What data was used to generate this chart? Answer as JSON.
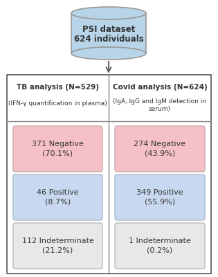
{
  "db_label_line1": "PSI dataset",
  "db_label_line2": "624 individuals",
  "db_color": "#b8d4e8",
  "db_edge_color": "#999999",
  "left_title_bold": "TB analysis (N=529)",
  "left_title_sub": "(IFN-γ quantification in plasma)",
  "right_title_bold": "Covid analysis (N=624)",
  "right_title_sub": "(IgA, IgG and IgM detection in\nserum)",
  "left_boxes": [
    {
      "label": "371 Negative\n(70.1%)",
      "color": "#f5c0c8",
      "edge": "#ccaaaa"
    },
    {
      "label": "46 Positive\n(8.7%)",
      "color": "#c8d8f0",
      "edge": "#aabbd0"
    },
    {
      "label": "112 Indeterminate\n(21.2%)",
      "color": "#e8e8ea",
      "edge": "#bbbbbb"
    }
  ],
  "right_boxes": [
    {
      "label": "274 Negative\n(43.9%)",
      "color": "#f5c0c8",
      "edge": "#ccaaaa"
    },
    {
      "label": "349 Positive\n(55.9%)",
      "color": "#c8d8f0",
      "edge": "#aabbd0"
    },
    {
      "label": "1 Indeterminate\n(0.2%)",
      "color": "#e8e8ea",
      "edge": "#bbbbbb"
    }
  ],
  "outer_box_edge": "#555555",
  "divider_color": "#888888",
  "background": "#ffffff",
  "text_color": "#333333",
  "arrow_color": "#666666"
}
